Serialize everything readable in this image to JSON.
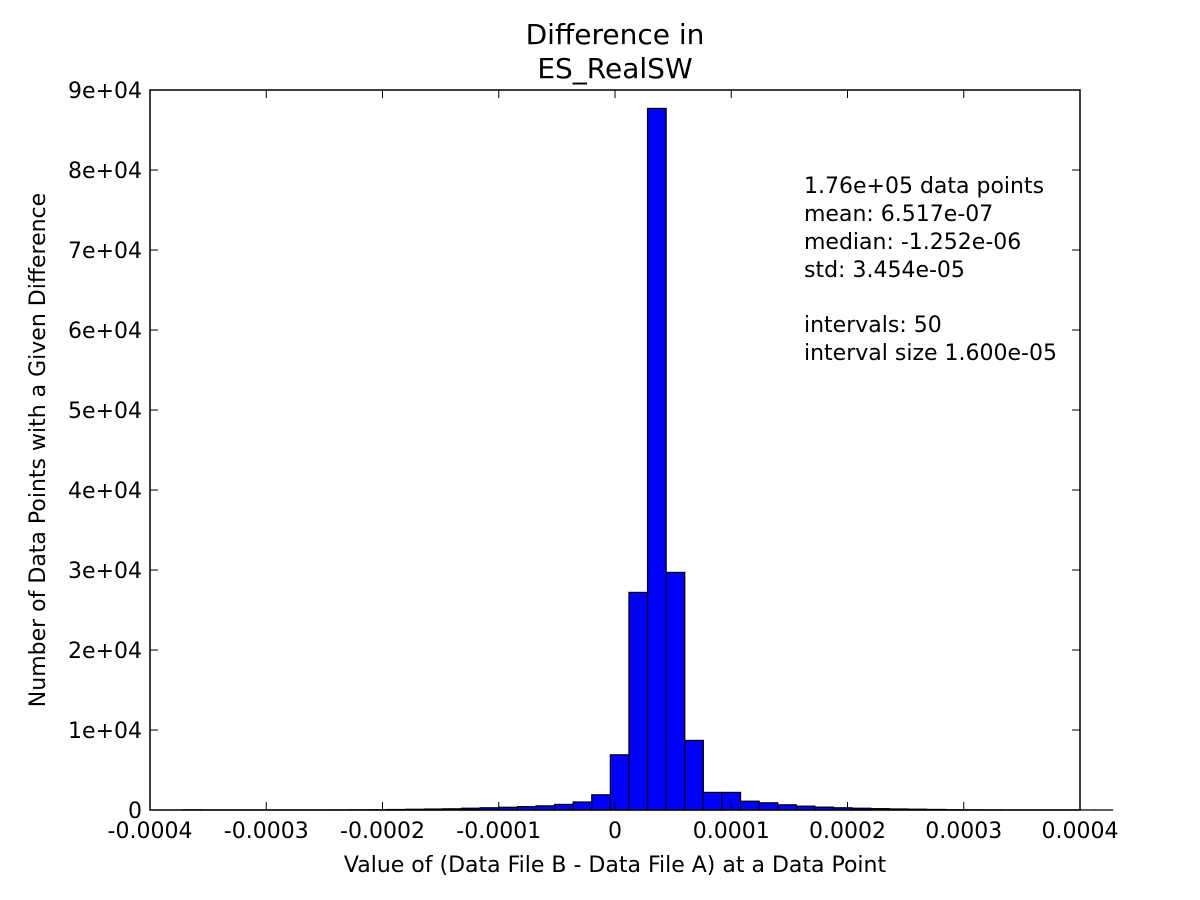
{
  "chart_data": {
    "type": "bar",
    "title_lines": [
      "Difference in",
      "ES_RealSW"
    ],
    "xlabel": "Value of (Data File B - Data File A) at a Data Point",
    "ylabel": "Number of Data Points with a Given Difference",
    "xlim": [
      -0.0004,
      0.0004
    ],
    "ylim": [
      0,
      90000
    ],
    "x_ticks": [
      -0.0004,
      -0.0003,
      -0.0002,
      -0.0001,
      0,
      0.0001,
      0.0002,
      0.0003,
      0.0004
    ],
    "x_tick_labels": [
      "-0.0004",
      "-0.0003",
      "-0.0002",
      "-0.0001",
      "0",
      "0.0001",
      "0.0002",
      "0.0003",
      "0.0004"
    ],
    "y_ticks": [
      0,
      10000,
      20000,
      30000,
      40000,
      50000,
      60000,
      70000,
      80000,
      90000
    ],
    "y_tick_labels": [
      "0",
      "1e+04",
      "2e+04",
      "3e+04",
      "4e+04",
      "5e+04",
      "6e+04",
      "7e+04",
      "8e+04",
      "9e+04"
    ],
    "bin_start": -0.000372,
    "bin_width": 1.6e-05,
    "counts": [
      20,
      5,
      5,
      5,
      5,
      5,
      5,
      5,
      10,
      20,
      30,
      60,
      90,
      120,
      150,
      220,
      280,
      340,
      420,
      520,
      700,
      1000,
      1900,
      6900,
      27200,
      87700,
      29700,
      8700,
      2200,
      2200,
      1100,
      900,
      650,
      480,
      360,
      280,
      220,
      170,
      130,
      100,
      70,
      40,
      20,
      10,
      5,
      5,
      5,
      5,
      5,
      5
    ],
    "bar_color": "#0000ff",
    "annotation_lines": [
      "1.76e+05 data points",
      "mean: 6.517e-07",
      "median: -1.252e-06",
      "std: 3.454e-05",
      "",
      "intervals: 50",
      "interval size 1.600e-05"
    ],
    "grid": false
  }
}
